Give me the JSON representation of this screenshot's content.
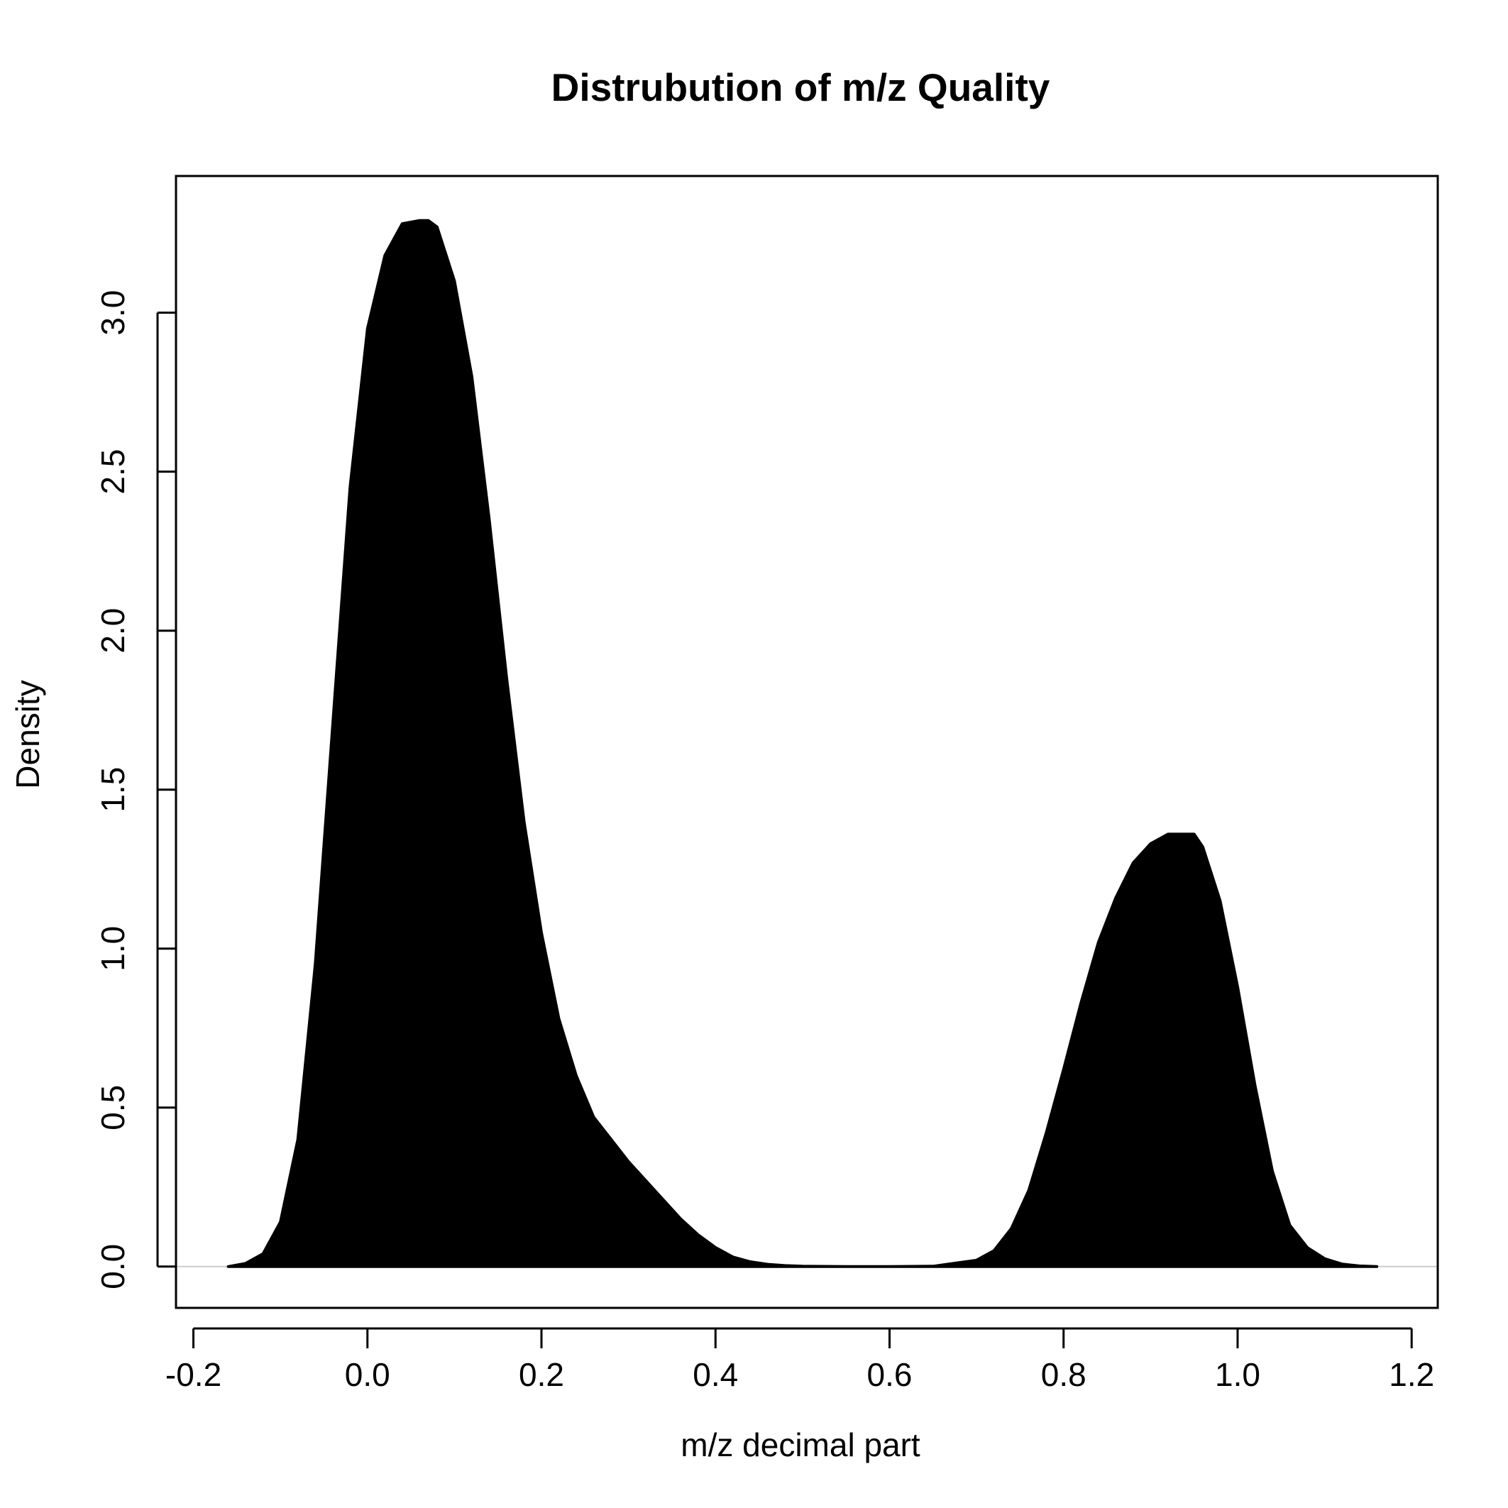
{
  "chart_data": {
    "type": "area",
    "title": "Distrubution of m/z Quality",
    "xlabel": "m/z decimal part",
    "ylabel": "Density",
    "xlim": [
      -0.22,
      1.23
    ],
    "ylim": [
      -0.13,
      3.43
    ],
    "x_ticks": [
      -0.2,
      0.0,
      0.2,
      0.4,
      0.6,
      0.8,
      1.0,
      1.2
    ],
    "x_tick_labels": [
      "-0.2",
      "0.0",
      "0.2",
      "0.4",
      "0.6",
      "0.8",
      "1.0",
      "1.2"
    ],
    "y_ticks": [
      0.0,
      0.5,
      1.0,
      1.5,
      2.0,
      2.5,
      3.0
    ],
    "y_tick_labels": [
      "0.0",
      "0.5",
      "1.0",
      "1.5",
      "2.0",
      "2.5",
      "3.0"
    ],
    "grid": false,
    "legend": "none",
    "fill_color": "#000000",
    "baseline_color": "#cccccc",
    "series": [
      {
        "x": [
          -0.16,
          -0.14,
          -0.12,
          -0.1,
          -0.08,
          -0.06,
          -0.04,
          -0.02,
          0.0,
          0.02,
          0.04,
          0.06,
          0.07,
          0.08,
          0.1,
          0.12,
          0.14,
          0.16,
          0.18,
          0.2,
          0.22,
          0.24,
          0.26,
          0.28,
          0.3,
          0.32,
          0.34,
          0.36,
          0.38,
          0.4,
          0.42,
          0.44,
          0.46,
          0.48,
          0.5,
          0.55,
          0.6,
          0.65,
          0.7,
          0.72,
          0.74,
          0.76,
          0.78,
          0.8,
          0.82,
          0.84,
          0.86,
          0.88,
          0.9,
          0.92,
          0.94,
          0.95,
          0.96,
          0.98,
          1.0,
          1.02,
          1.04,
          1.06,
          1.08,
          1.1,
          1.12,
          1.14,
          1.16
        ],
        "y": [
          0.0,
          0.01,
          0.04,
          0.14,
          0.4,
          0.95,
          1.7,
          2.45,
          2.95,
          3.18,
          3.28,
          3.29,
          3.29,
          3.27,
          3.1,
          2.8,
          2.35,
          1.85,
          1.4,
          1.05,
          0.78,
          0.6,
          0.47,
          0.4,
          0.33,
          0.27,
          0.21,
          0.15,
          0.1,
          0.06,
          0.03,
          0.015,
          0.007,
          0.003,
          0.001,
          0.0,
          0.0,
          0.001,
          0.02,
          0.05,
          0.12,
          0.24,
          0.42,
          0.62,
          0.83,
          1.02,
          1.16,
          1.27,
          1.33,
          1.36,
          1.36,
          1.36,
          1.32,
          1.15,
          0.88,
          0.57,
          0.3,
          0.13,
          0.06,
          0.025,
          0.008,
          0.002,
          0.0
        ]
      }
    ]
  }
}
